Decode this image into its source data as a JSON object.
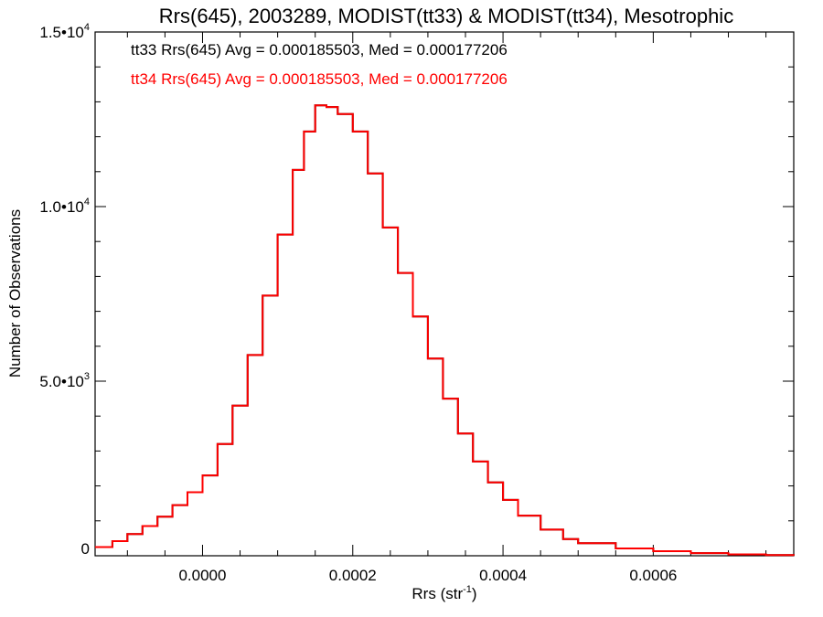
{
  "chart_data": {
    "type": "line",
    "title": "Rrs(645), 2003289, MODIST(tt33) & MODIST(tt34), Mesotrophic",
    "xlabel": {
      "base": "Rrs (str",
      "sup": "-1",
      "end": ")"
    },
    "ylabel": "Number of Observations",
    "xlim": [
      -0.000143,
      0.000787
    ],
    "ylim": [
      0,
      15000
    ],
    "x_ticks": [
      {
        "value": 0.0,
        "label": "0.0000"
      },
      {
        "value": 0.0002,
        "label": "0.0002"
      },
      {
        "value": 0.0004,
        "label": "0.0004"
      },
      {
        "value": 0.0006,
        "label": "0.0006"
      }
    ],
    "x_minor_step": 5e-05,
    "y_ticks": [
      {
        "value": 0,
        "base": "0",
        "sup": ""
      },
      {
        "value": 5000,
        "base": "5.0•10",
        "sup": "3"
      },
      {
        "value": 10000,
        "base": "1.0•10",
        "sup": "4"
      },
      {
        "value": 15000,
        "base": "1.5•10",
        "sup": "4"
      }
    ],
    "y_minor_step": 1000,
    "annotations": [
      {
        "text": "tt33 Rrs(645) Avg = 0.000185503, Med = 0.000177206",
        "color": "#000000"
      },
      {
        "text": "tt34 Rrs(645) Avg = 0.000185503, Med = 0.000177206",
        "color": "#ff0000"
      }
    ],
    "series": [
      {
        "color": "#000000",
        "width": 2,
        "draw_style": "step",
        "x": [
          -0.000143,
          -0.00012,
          -0.0001,
          -8e-05,
          -6e-05,
          -4e-05,
          -2e-05,
          0.0,
          2e-05,
          4e-05,
          6e-05,
          8e-05,
          0.0001,
          0.00012,
          0.000135,
          0.00015,
          0.000165,
          0.00018,
          0.0002,
          0.00022,
          0.00024,
          0.00026,
          0.00028,
          0.0003,
          0.00032,
          0.00034,
          0.00036,
          0.00038,
          0.0004,
          0.00042,
          0.00045,
          0.00048,
          0.0005,
          0.00055,
          0.0006,
          0.00065,
          0.0007,
          0.00075,
          0.000787
        ],
        "values": [
          250,
          420,
          620,
          850,
          1120,
          1450,
          1820,
          2300,
          3200,
          4300,
          5750,
          7450,
          9200,
          11050,
          12150,
          12900,
          12850,
          12650,
          12150,
          10950,
          9400,
          8100,
          6850,
          5650,
          4500,
          3500,
          2700,
          2100,
          1600,
          1150,
          750,
          480,
          360,
          210,
          130,
          75,
          40,
          18,
          8
        ]
      },
      {
        "color": "#ff0000",
        "width": 2,
        "draw_style": "step",
        "x": [
          -0.000143,
          -0.00012,
          -0.0001,
          -8e-05,
          -6e-05,
          -4e-05,
          -2e-05,
          0.0,
          2e-05,
          4e-05,
          6e-05,
          8e-05,
          0.0001,
          0.00012,
          0.000135,
          0.00015,
          0.000165,
          0.00018,
          0.0002,
          0.00022,
          0.00024,
          0.00026,
          0.00028,
          0.0003,
          0.00032,
          0.00034,
          0.00036,
          0.00038,
          0.0004,
          0.00042,
          0.00045,
          0.00048,
          0.0005,
          0.00055,
          0.0006,
          0.00065,
          0.0007,
          0.00075,
          0.000787
        ],
        "values": [
          250,
          420,
          620,
          850,
          1120,
          1450,
          1820,
          2300,
          3200,
          4300,
          5750,
          7450,
          9200,
          11050,
          12150,
          12900,
          12850,
          12650,
          12150,
          10950,
          9400,
          8100,
          6850,
          5650,
          4500,
          3500,
          2700,
          2100,
          1600,
          1150,
          750,
          480,
          360,
          210,
          130,
          75,
          40,
          18,
          8
        ]
      }
    ],
    "grid": false,
    "legend": "none"
  }
}
